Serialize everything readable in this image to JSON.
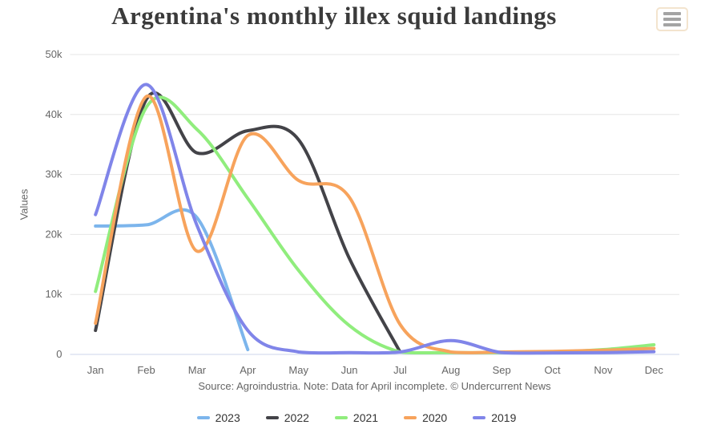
{
  "chart": {
    "menu_icon": "hamburger-icon"
  },
  "chart_data": {
    "type": "line",
    "title": "Argentina's monthly illex squid landings",
    "ylabel": "Values",
    "xlabel": "",
    "source_note": "Source: Agroindustria. Note: Data for April incomplete. © Undercurrent News",
    "categories": [
      "Jan",
      "Feb",
      "Mar",
      "Apr",
      "May",
      "Jun",
      "Jul",
      "Aug",
      "Sep",
      "Oct",
      "Nov",
      "Dec"
    ],
    "ylim": [
      0,
      50000
    ],
    "yticks": [
      0,
      10000,
      20000,
      30000,
      40000,
      50000
    ],
    "ytick_labels": [
      "0",
      "10k",
      "20k",
      "30k",
      "40k",
      "50k"
    ],
    "grid": "horizontal-only",
    "legend_position": "bottom-center",
    "axis_line_color": "#ccd6eb",
    "grid_color": "#e6e6e6",
    "series": [
      {
        "name": "2023",
        "color": "#7cb5ec",
        "values": [
          21400,
          21600,
          22800,
          800
        ]
      },
      {
        "name": "2022",
        "color": "#434348",
        "values": [
          4000,
          42500,
          33600,
          37300,
          35800,
          16000,
          400
        ]
      },
      {
        "name": "2021",
        "color": "#90ed7d",
        "values": [
          10500,
          41200,
          37500,
          26000,
          14000,
          4800,
          400,
          300,
          300,
          400,
          800,
          1600
        ]
      },
      {
        "name": "2020",
        "color": "#f7a35c",
        "values": [
          5200,
          43000,
          17200,
          36500,
          29000,
          26200,
          5000,
          400,
          400,
          500,
          700,
          1000
        ]
      },
      {
        "name": "2019",
        "color": "#8085e9",
        "values": [
          23300,
          45000,
          21500,
          4000,
          400,
          300,
          400,
          2300,
          300,
          250,
          300,
          450
        ]
      }
    ]
  }
}
